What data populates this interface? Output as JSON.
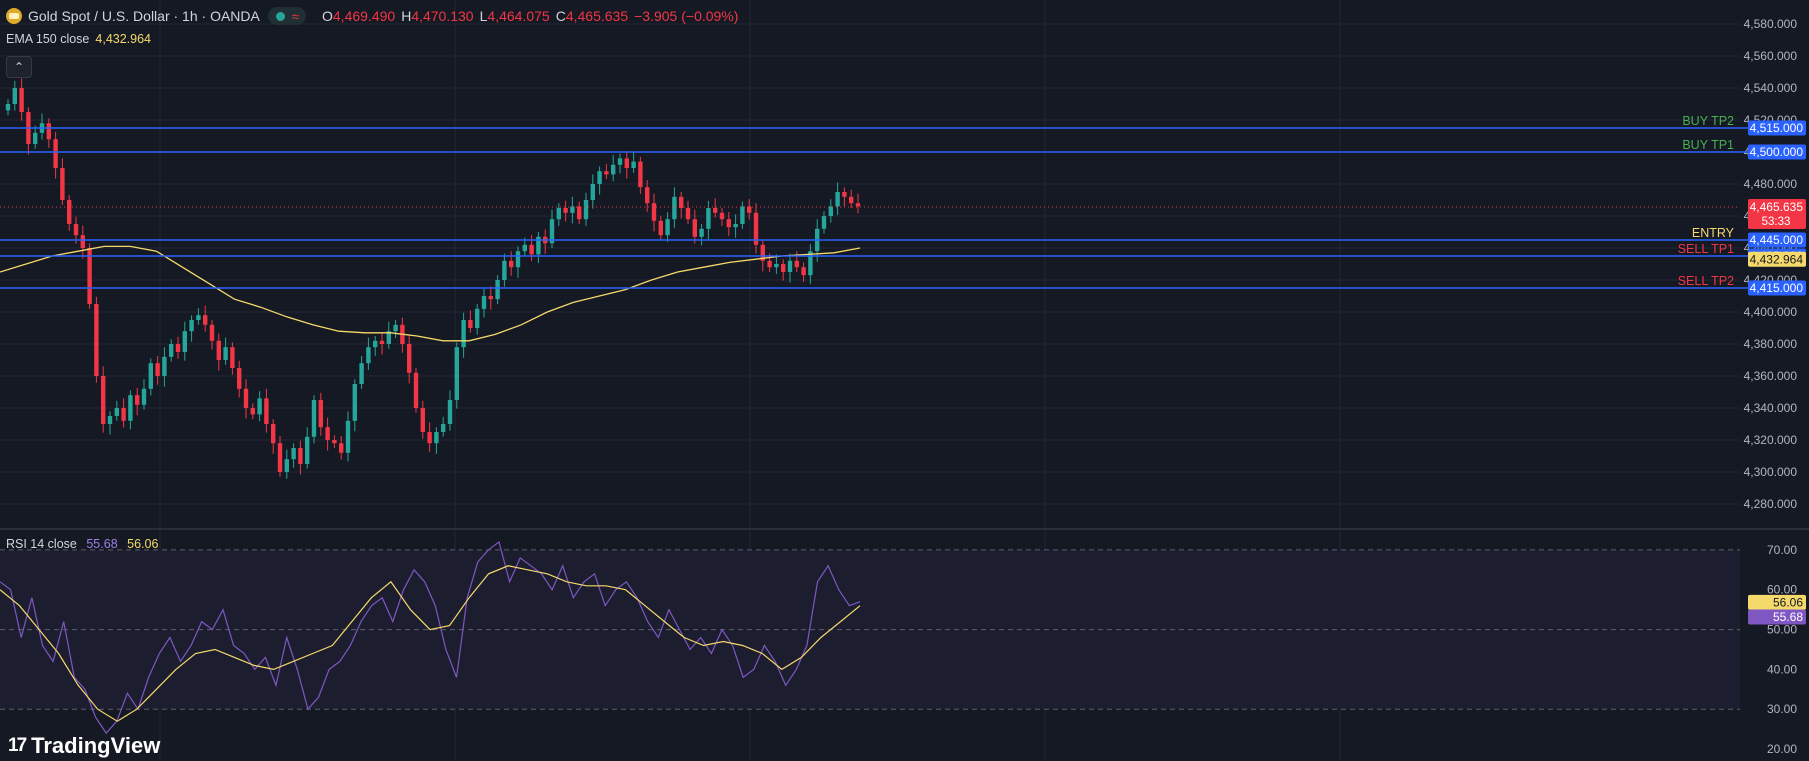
{
  "header": {
    "symbol_title": "Gold Spot / U.S. Dollar · 1h · OANDA",
    "status_icon": "market-open-dot",
    "o_label": "O",
    "o_value": "4,469.490",
    "h_label": "H",
    "h_value": "4,470.130",
    "l_label": "L",
    "l_value": "4,464.075",
    "c_label": "C",
    "c_value": "4,465.635",
    "change": "−3.905 (−0.09%)"
  },
  "ema_legend": {
    "label": "EMA 150 close",
    "value": "4,432.964"
  },
  "rsi_legend": {
    "label": "RSI 14 close",
    "value": "55.68",
    "ma_value": "56.06"
  },
  "logo_text": "TradingView",
  "colors": {
    "background": "#151924",
    "grid": "#232734",
    "up": "#26a69a",
    "down": "#f23645",
    "ema": "#f5d96a",
    "level_line": "#2962ff",
    "rsi": "#7e57c2",
    "rsi_ma": "#f5d96a",
    "buy_text": "#4caf50",
    "sell_text": "#f23645",
    "entry_text": "#f5d96a"
  },
  "chart_data": [
    {
      "type": "candlestick",
      "title": "Gold Spot / U.S. Dollar · 1h · OANDA",
      "ylim": [
        4265,
        4595
      ],
      "y_ticks": [
        4280,
        4300,
        4320,
        4340,
        4360,
        4380,
        4400,
        4420,
        4440,
        4460,
        4480,
        4500,
        4520,
        4540,
        4560,
        4580
      ],
      "y_tick_labels": [
        "4,280.000",
        "4,300.000",
        "4,320.000",
        "4,340.000",
        "4,360.000",
        "4,380.000",
        "4,400.000",
        "4,420.000",
        "4,440.000",
        "4,460.000",
        "4,480.000",
        "4,500.000",
        "4,520.000",
        "4,540.000",
        "4,560.000",
        "4,580.000"
      ],
      "close_path": [
        4530,
        4540,
        4525,
        4505,
        4512,
        4518,
        4508,
        4490,
        4470,
        4455,
        4448,
        4440,
        4405,
        4360,
        4330,
        4335,
        4340,
        4332,
        4348,
        4342,
        4352,
        4368,
        4360,
        4372,
        4380,
        4375,
        4388,
        4395,
        4398,
        4392,
        4382,
        4370,
        4378,
        4365,
        4352,
        4340,
        4336,
        4346,
        4330,
        4318,
        4300,
        4308,
        4315,
        4305,
        4322,
        4345,
        4328,
        4320,
        4318,
        4312,
        4332,
        4355,
        4368,
        4378,
        4382,
        4380,
        4388,
        4392,
        4380,
        4362,
        4340,
        4325,
        4318,
        4325,
        4330,
        4345,
        4378,
        4395,
        4390,
        4402,
        4410,
        4408,
        4420,
        4432,
        4428,
        4438,
        4442,
        4436,
        4447,
        4443,
        4458,
        4465,
        4462,
        4466,
        4458,
        4470,
        4480,
        4488,
        4486,
        4492,
        4496,
        4490,
        4494,
        4478,
        4468,
        4457,
        4448,
        4458,
        4472,
        4465,
        4458,
        4447,
        4452,
        4465,
        4462,
        4458,
        4453,
        4455,
        4466,
        4462,
        4442,
        4432,
        4428,
        4430,
        4425,
        4432,
        4428,
        4423,
        4438,
        4452,
        4460,
        4466,
        4475,
        4472,
        4468,
        4466
      ],
      "ema_path": [
        4425,
        4430,
        4435,
        4438,
        4441,
        4441,
        4438,
        4428,
        4418,
        4408,
        4403,
        4397,
        4392,
        4388,
        4387,
        4387,
        4385,
        4382,
        4382,
        4386,
        4392,
        4400,
        4406,
        4410,
        4414,
        4420,
        4425,
        4428,
        4431,
        4433,
        4435,
        4436,
        4437,
        4440
      ],
      "ema_value": 4432.964,
      "current_price": 4465.635,
      "current_price_label": "4,465.635",
      "countdown": "53:33",
      "levels": [
        {
          "name": "BUY TP2",
          "value": 4515,
          "label": "4,515.000",
          "side": "buy"
        },
        {
          "name": "BUY TP1",
          "value": 4500,
          "label": "4,500.000",
          "side": "buy"
        },
        {
          "name": "ENTRY",
          "value": 4445,
          "label": "4,445.000",
          "side": "entry"
        },
        {
          "name": "SELL TP1",
          "value": 4435,
          "label": "4,435.000",
          "side": "sell"
        },
        {
          "name": "SELL TP2",
          "value": 4415,
          "label": "4,415.000",
          "side": "sell"
        }
      ],
      "ema_badge": "4,432.964"
    },
    {
      "type": "line",
      "title": "RSI 14 close",
      "ylim": [
        17,
        75
      ],
      "y_ticks": [
        20,
        30,
        40,
        50,
        60,
        70
      ],
      "y_tick_labels": [
        "20.00",
        "30.00",
        "40.00",
        "50.00",
        "60.00",
        "70.00"
      ],
      "band": [
        30,
        70
      ],
      "series": [
        {
          "name": "RSI",
          "values": [
            62,
            60,
            48,
            58,
            46,
            42,
            52,
            38,
            35,
            28,
            24,
            27,
            34,
            30,
            38,
            44,
            48,
            42,
            46,
            52,
            50,
            55,
            46,
            44,
            40,
            43,
            36,
            48,
            40,
            30,
            33,
            40,
            42,
            46,
            52,
            56,
            58,
            52,
            60,
            65,
            62,
            56,
            45,
            38,
            58,
            67,
            70,
            72,
            62,
            68,
            66,
            64,
            60,
            66,
            58,
            62,
            64,
            56,
            60,
            62,
            58,
            52,
            48,
            55,
            50,
            45,
            48,
            44,
            50,
            46,
            38,
            40,
            46,
            42,
            36,
            40,
            46,
            62,
            66,
            60,
            56,
            57
          ],
          "value_label": "55.68"
        },
        {
          "name": "RSI MA",
          "values": [
            60,
            56,
            50,
            44,
            36,
            30,
            27,
            30,
            35,
            40,
            44,
            45,
            43,
            41,
            40,
            42,
            44,
            46,
            52,
            58,
            62,
            55,
            50,
            51,
            58,
            64,
            66,
            65,
            64,
            62,
            61,
            61,
            60,
            56,
            52,
            48,
            46,
            47,
            46,
            44,
            40,
            43,
            48,
            52,
            56
          ],
          "value_label": "56.06"
        }
      ]
    }
  ]
}
